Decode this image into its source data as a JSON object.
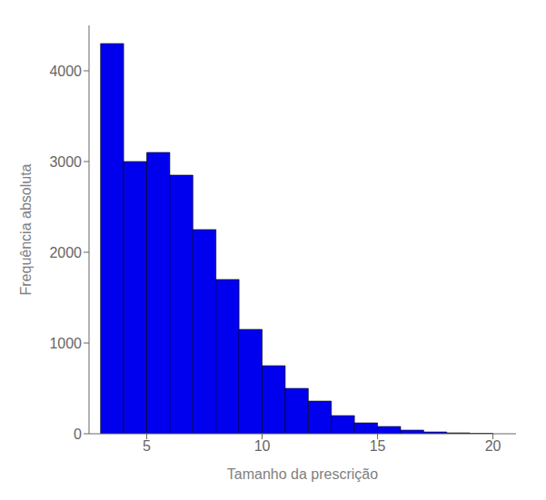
{
  "chart_data": {
    "type": "histogram",
    "xlabel": "Tamanho da prescrição",
    "ylabel": "Frequência absoluta",
    "bins": [
      3,
      4,
      5,
      6,
      7,
      8,
      9,
      10,
      11,
      12,
      13,
      14,
      15,
      16,
      17,
      18,
      19,
      20
    ],
    "values": [
      4300,
      3000,
      3100,
      2850,
      2250,
      1700,
      1150,
      750,
      500,
      360,
      200,
      120,
      80,
      40,
      20,
      10,
      5
    ],
    "color": "#0000EE",
    "xlim": [
      2.5,
      21
    ],
    "ylim": [
      0,
      4500
    ],
    "xticks": [
      5,
      10,
      15,
      20
    ],
    "yticks": [
      0,
      1000,
      2000,
      3000,
      4000
    ],
    "grid": false
  }
}
